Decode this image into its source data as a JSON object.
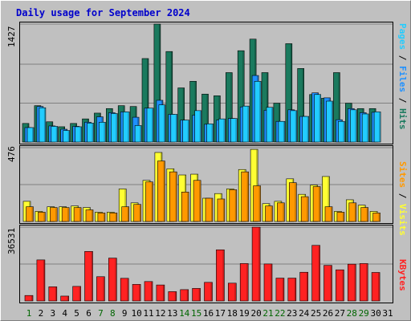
{
  "title": "Daily usage for September 2024",
  "colors": {
    "hits": "#1a7a5e",
    "files": "#1e90ff",
    "pages": "#22ccff",
    "visits": "#ffff33",
    "sites": "#ff9900",
    "kbytes": "#ff2222",
    "grid": "#808080",
    "weekend": "#006600"
  },
  "labels": {
    "top_max": "1427",
    "mid_max": "476",
    "bot_max": "36531",
    "right_top": [
      "Pages",
      " / ",
      "Files",
      " / ",
      "Hits"
    ],
    "right_mid": [
      "Sites",
      " / ",
      "Visits"
    ],
    "right_bot": "KBytes"
  },
  "days": [
    "1",
    "2",
    "3",
    "4",
    "5",
    "6",
    "7",
    "8",
    "9",
    "10",
    "11",
    "12",
    "13",
    "14",
    "15",
    "16",
    "17",
    "18",
    "19",
    "20",
    "21",
    "22",
    "23",
    "24",
    "25",
    "26",
    "27",
    "28",
    "29",
    "30",
    "31"
  ],
  "weekend_days": [
    1,
    7,
    8,
    14,
    15,
    21,
    22,
    28,
    29
  ],
  "chart_data": [
    {
      "type": "bar",
      "title": "Daily usage for September 2024",
      "categories": [
        "1",
        "2",
        "3",
        "4",
        "5",
        "6",
        "7",
        "8",
        "9",
        "10",
        "11",
        "12",
        "13",
        "14",
        "15",
        "16",
        "17",
        "18",
        "19",
        "20",
        "21",
        "22",
        "23",
        "24",
        "25",
        "26",
        "27",
        "28",
        "29",
        "30",
        "31"
      ],
      "ylim": [
        0,
        1427
      ],
      "series": [
        {
          "name": "Hits",
          "values": [
            225,
            440,
            245,
            185,
            225,
            280,
            350,
            405,
            440,
            430,
            1010,
            1427,
            1095,
            655,
            735,
            580,
            560,
            840,
            1105,
            1245,
            840,
            470,
            1190,
            890,
            575,
            530,
            840,
            470,
            405,
            405,
            0
          ]
        },
        {
          "name": "Files",
          "values": [
            175,
            430,
            195,
            155,
            190,
            240,
            305,
            355,
            365,
            300,
            410,
            505,
            335,
            265,
            325,
            215,
            265,
            285,
            425,
            805,
            385,
            250,
            390,
            310,
            595,
            535,
            270,
            405,
            355,
            360,
            0
          ]
        },
        {
          "name": "Pages",
          "values": [
            175,
            415,
            190,
            140,
            185,
            230,
            240,
            345,
            365,
            200,
            410,
            450,
            335,
            265,
            380,
            220,
            280,
            285,
            435,
            735,
            420,
            250,
            380,
            310,
            575,
            495,
            250,
            390,
            340,
            365,
            0
          ]
        }
      ]
    },
    {
      "type": "bar",
      "categories": [
        "1",
        "2",
        "3",
        "4",
        "5",
        "6",
        "7",
        "8",
        "9",
        "10",
        "11",
        "12",
        "13",
        "14",
        "15",
        "16",
        "17",
        "18",
        "19",
        "20",
        "21",
        "22",
        "23",
        "24",
        "25",
        "26",
        "27",
        "28",
        "29",
        "30",
        "31"
      ],
      "ylim": [
        0,
        476
      ],
      "series": [
        {
          "name": "Visits",
          "values": [
            130,
            65,
            95,
            95,
            100,
            90,
            60,
            60,
            210,
            120,
            265,
            445,
            340,
            300,
            305,
            150,
            180,
            210,
            335,
            465,
            115,
            130,
            275,
            175,
            235,
            290,
            65,
            140,
            105,
            65,
            0
          ]
        },
        {
          "name": "Sites",
          "values": [
            95,
            60,
            90,
            90,
            90,
            75,
            55,
            55,
            95,
            110,
            255,
            390,
            320,
            190,
            265,
            150,
            145,
            205,
            320,
            230,
            100,
            120,
            250,
            160,
            225,
            95,
            60,
            120,
            90,
            55,
            0
          ]
        }
      ]
    },
    {
      "type": "bar",
      "categories": [
        "1",
        "2",
        "3",
        "4",
        "5",
        "6",
        "7",
        "8",
        "9",
        "10",
        "11",
        "12",
        "13",
        "14",
        "15",
        "16",
        "17",
        "18",
        "19",
        "20",
        "21",
        "22",
        "23",
        "24",
        "25",
        "26",
        "27",
        "28",
        "29",
        "30",
        "31"
      ],
      "ylim": [
        0,
        36531
      ],
      "series": [
        {
          "name": "KBytes",
          "values": [
            2700,
            20300,
            7000,
            2400,
            7200,
            24500,
            12000,
            21200,
            11200,
            8200,
            9600,
            7900,
            4600,
            5600,
            6200,
            9200,
            25300,
            8800,
            18500,
            36531,
            18300,
            11300,
            11300,
            14200,
            27500,
            17600,
            15400,
            18200,
            18500,
            14100,
            0
          ]
        }
      ]
    }
  ]
}
